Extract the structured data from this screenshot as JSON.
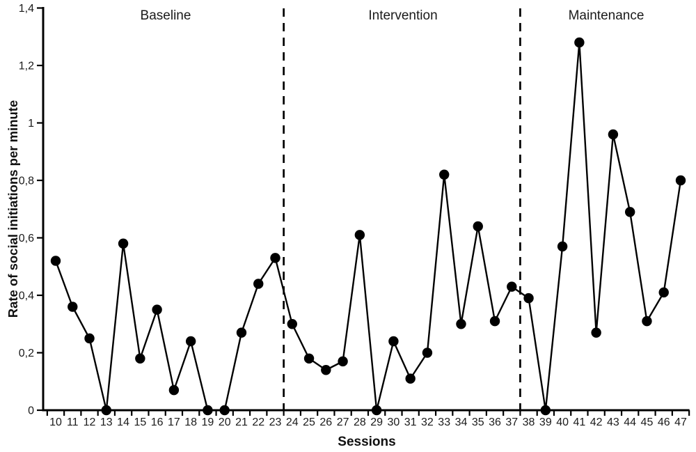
{
  "chart_data": {
    "type": "line",
    "title": "",
    "xlabel": "Sessions",
    "ylabel": "Rate of social initiations per minute",
    "sessions": [
      10,
      11,
      12,
      13,
      14,
      15,
      16,
      17,
      18,
      19,
      20,
      21,
      22,
      23,
      24,
      25,
      26,
      27,
      28,
      29,
      30,
      31,
      32,
      33,
      34,
      35,
      36,
      37,
      38,
      39,
      40,
      41,
      42,
      43,
      44,
      45,
      46,
      47
    ],
    "values": [
      0.52,
      0.36,
      0.25,
      0,
      0.58,
      0.18,
      0.35,
      0.07,
      0.24,
      0,
      0,
      0.27,
      0.44,
      0.53,
      0.3,
      0.18,
      0.14,
      0.17,
      0.61,
      0,
      0.24,
      0.11,
      0.2,
      0.82,
      0.3,
      0.64,
      0.31,
      0.43,
      0.39,
      0,
      0.57,
      1.28,
      0.27,
      0.96,
      0.69,
      0.31,
      0.41,
      0.8
    ],
    "phases": [
      {
        "label": "Baseline",
        "start": 10,
        "end": 23
      },
      {
        "label": "Intervention",
        "start": 24,
        "end": 37
      },
      {
        "label": "Maintenance",
        "start": 38,
        "end": 47
      }
    ],
    "ylim": [
      0,
      1.4
    ],
    "yticks": [
      {
        "value": 0,
        "label": "0"
      },
      {
        "value": 0.2,
        "label": "0,2"
      },
      {
        "value": 0.4,
        "label": "0,4"
      },
      {
        "value": 0.6,
        "label": "0,6"
      },
      {
        "value": 0.8,
        "label": "0,8"
      },
      {
        "value": 1,
        "label": "1"
      },
      {
        "value": 1.2,
        "label": "1,2"
      },
      {
        "value": 1.4,
        "label": "1,4"
      }
    ],
    "legend": null,
    "grid": "off",
    "line_color": "#000000",
    "marker_color": "#000000",
    "axis_color": "#000000",
    "separator_style": "dashed",
    "marker": "filled-circle",
    "background": "#ffffff"
  }
}
